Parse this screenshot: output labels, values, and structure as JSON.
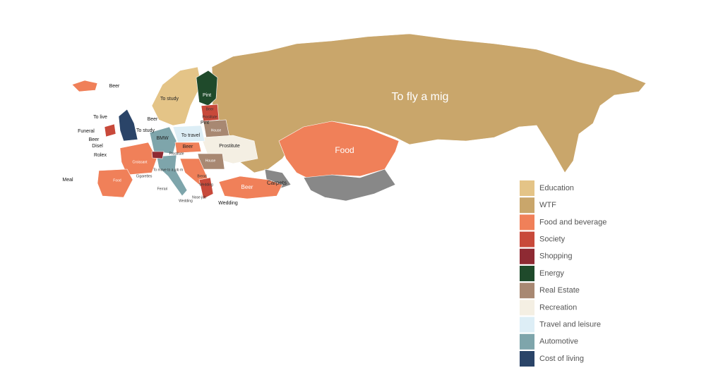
{
  "legend": [
    {
      "name": "Education",
      "color": "#e4c487"
    },
    {
      "name": "WTF",
      "color": "#c9a66b"
    },
    {
      "name": "Food and beverage",
      "color": "#f08059"
    },
    {
      "name": "Society",
      "color": "#c8493a"
    },
    {
      "name": "Shopping",
      "color": "#8e2a33"
    },
    {
      "name": "Energy",
      "color": "#1f4a2b"
    },
    {
      "name": "Real Estate",
      "color": "#a88872"
    },
    {
      "name": "Recreation",
      "color": "#f4efe3"
    },
    {
      "name": "Travel and leisure",
      "color": "#ddeef6"
    },
    {
      "name": "Automotive",
      "color": "#7ea5ab"
    },
    {
      "name": "Cost of living",
      "color": "#2a4468"
    }
  ],
  "labels": {
    "russia": "To fly a mig",
    "kazakhstan": "Food",
    "turkey": "Beer",
    "carpets": "Carpets",
    "iceland": "Beer",
    "scandinavia": "To study",
    "finland": "Pint",
    "estonia": "Beer",
    "latvia": "Prostitute",
    "lithuania": "Pint",
    "belarus": "House",
    "ukraine": "Prostitute",
    "scotland": "To live",
    "ireland": "Funeral",
    "uk": "To study",
    "belgium": "Beer",
    "netherlands": "Disel",
    "germany": "BMW",
    "poland": "To travel",
    "czech": "Beer",
    "switzerland": "Rolex",
    "france": "Croissant",
    "monaco": "Cigarettes",
    "spain": "Food",
    "portugal": "Meal",
    "italy": "Ferrari",
    "italy2": "Wedding",
    "romania": "House",
    "bulgaria": "Bread",
    "greece": "Wedding",
    "greece2": "Nose job",
    "cyprus": "Wedding",
    "hungary": "Prostitute",
    "austria": "To move to a job m",
    "denmark": "Beer"
  }
}
